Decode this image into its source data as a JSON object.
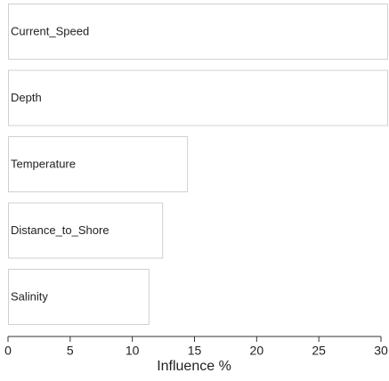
{
  "chart_data": {
    "type": "hbar",
    "x_label": "Influence %",
    "categories": [
      "Current_Speed",
      "Depth",
      "Temperature",
      "Distance_to_Shore",
      "Salinity"
    ],
    "values": [
      30.5,
      30.5,
      14.4,
      12.4,
      11.3
    ],
    "color": "#ffffff",
    "edge_color": "#d0d0d0",
    "xlim": [
      0,
      30
    ],
    "xticks": [
      0,
      5,
      10,
      15,
      20,
      25,
      30
    ],
    "grid": false
  }
}
